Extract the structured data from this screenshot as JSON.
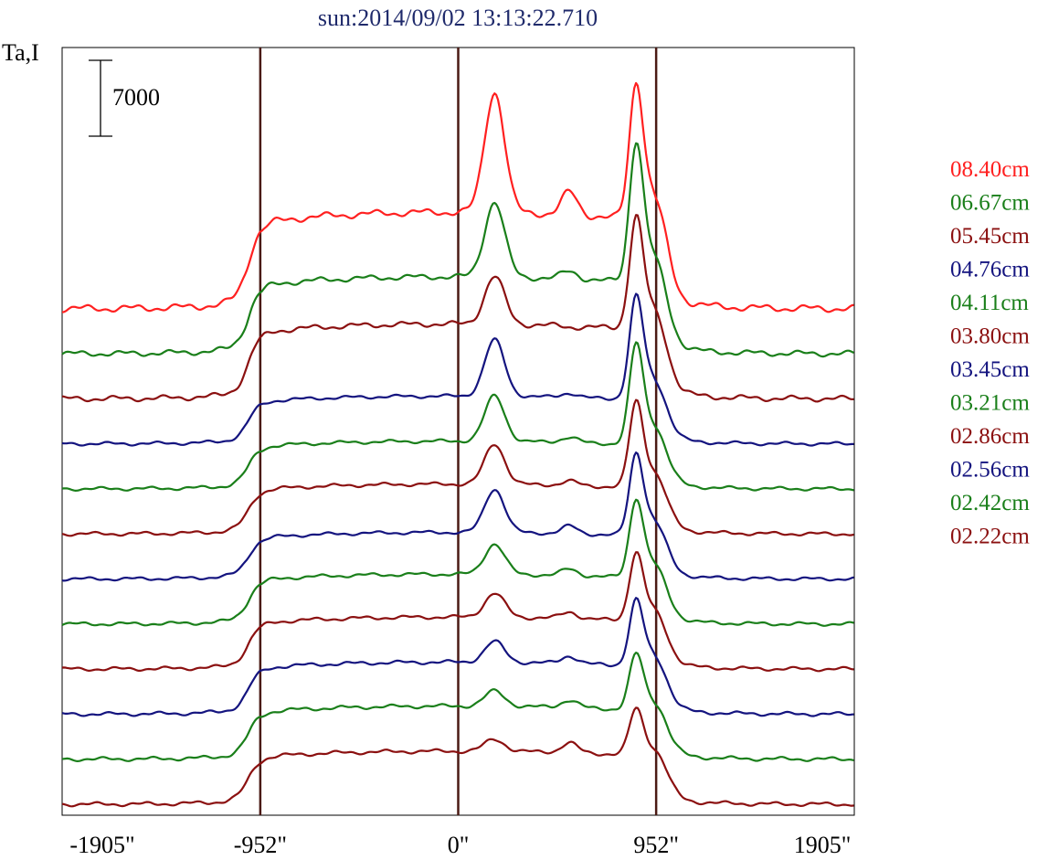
{
  "title": "sun:2014/09/02 13:13:22.710",
  "colors": {
    "title": "#1f2a6b",
    "frame": "#000000",
    "marker": "#4a1a14",
    "red": "#ff2020",
    "green": "#1a7f1a",
    "maroon": "#8b1010",
    "navy": "#14147f"
  },
  "chart_data": {
    "type": "line",
    "title": "sun:2014/09/02 13:13:22.710",
    "ylabel": "Ta,I",
    "xlabel": "",
    "x_ticks": [
      {
        "x": -1905,
        "label": "-1905\""
      },
      {
        "x": -952,
        "label": "-952\""
      },
      {
        "x": 0,
        "label": "0\""
      },
      {
        "x": 952,
        "label": "952\""
      },
      {
        "x": 1905,
        "label": "1905\""
      }
    ],
    "xlim": [
      -1905,
      1905
    ],
    "vertical_markers": [
      -952,
      0,
      952
    ],
    "scale_bar": {
      "value": 7000,
      "label": "7000"
    },
    "legend_position": "right",
    "series": [
      {
        "name": "08.40cm",
        "color": "#ff2020",
        "baseline": 0,
        "disk": 8900,
        "peak1": 20000,
        "peak2": 11000,
        "peak3": 20300,
        "peak4": 0
      },
      {
        "name": "06.67cm",
        "color": "#1a7f1a",
        "baseline": 4400,
        "disk": 11500,
        "peak1": 18400,
        "peak2": 12200,
        "peak3": 23200,
        "peak4": 0
      },
      {
        "name": "05.45cm",
        "color": "#8b1010",
        "baseline": 8400,
        "disk": 15300,
        "peak1": 19700,
        "peak2": 15200,
        "peak3": 24700,
        "peak4": 0
      },
      {
        "name": "04.76cm",
        "color": "#14147f",
        "baseline": 14700,
        "disk": 19100,
        "peak1": 24300,
        "peak2": 19500,
        "peak3": 27700,
        "peak4": 0
      },
      {
        "name": "04.11cm",
        "color": "#1a7f1a",
        "baseline": 18900,
        "disk": 23300,
        "peak1": 27500,
        "peak2": 23800,
        "peak3": 31700,
        "peak4": 0
      },
      {
        "name": "03.80cm",
        "color": "#8b1010",
        "baseline": 23100,
        "disk": 27700,
        "peak1": 31400,
        "peak2": 28100,
        "peak3": 34900,
        "peak4": 0
      },
      {
        "name": "03.45cm",
        "color": "#14147f",
        "baseline": 27400,
        "disk": 31700,
        "peak1": 35700,
        "peak2": 32400,
        "peak3": 38600,
        "peak4": 0
      },
      {
        "name": "03.21cm",
        "color": "#1a7f1a",
        "baseline": 31600,
        "disk": 36200,
        "peak1": 39000,
        "peak2": 36800,
        "peak3": 42800,
        "peak4": 0
      },
      {
        "name": "02.86cm",
        "color": "#8b1010",
        "baseline": 35800,
        "disk": 40600,
        "peak1": 42800,
        "peak2": 41200,
        "peak3": 46300,
        "peak4": 0
      },
      {
        "name": "02.56cm",
        "color": "#14147f",
        "baseline": 40000,
        "disk": 44800,
        "peak1": 46700,
        "peak2": 45500,
        "peak3": 50300,
        "peak4": 0
      },
      {
        "name": "02.42cm",
        "color": "#1a7f1a",
        "baseline": 44300,
        "disk": 49200,
        "peak1": 50600,
        "peak2": 49900,
        "peak3": 53900,
        "peak4": 0
      },
      {
        "name": "02.22cm",
        "color": "#8b1010",
        "baseline": 48500,
        "disk": 53400,
        "peak1": 54500,
        "peak2": 54300,
        "peak3": 57300,
        "peak4": 0
      }
    ]
  }
}
